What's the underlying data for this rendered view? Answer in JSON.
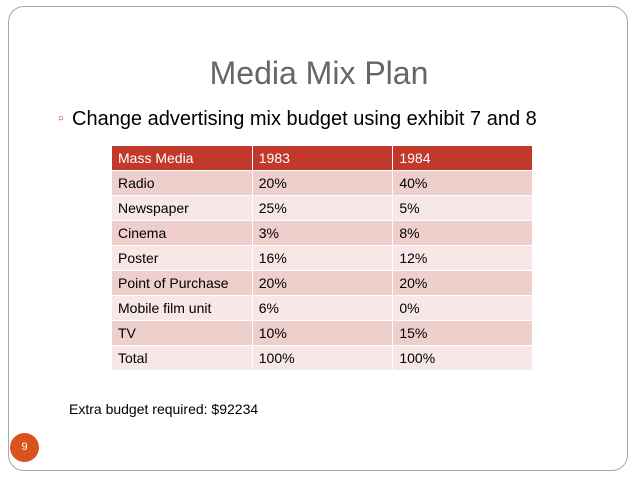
{
  "slide": {
    "title": "Media Mix Plan",
    "bullet": "Change advertising mix budget using exhibit 7 and 8",
    "extra_budget": "Extra budget required: $92234",
    "page_number": "9"
  },
  "table": {
    "headers": [
      "Mass Media",
      "1983",
      "1984"
    ],
    "rows": [
      [
        "Radio",
        "20%",
        "40%"
      ],
      [
        "Newspaper",
        "25%",
        "5%"
      ],
      [
        "Cinema",
        "3%",
        "8%"
      ],
      [
        "Poster",
        "16%",
        "12%"
      ],
      [
        "Point of Purchase",
        "20%",
        "20%"
      ],
      [
        "Mobile film unit",
        "6%",
        "0%"
      ],
      [
        "TV",
        "10%",
        "15%"
      ],
      [
        "Total",
        "100%",
        "100%"
      ]
    ]
  },
  "colors": {
    "header_bg": "#c0392b",
    "row_odd": "#efcfcc",
    "row_even": "#f7e7e6",
    "accent": "#d9531e"
  }
}
